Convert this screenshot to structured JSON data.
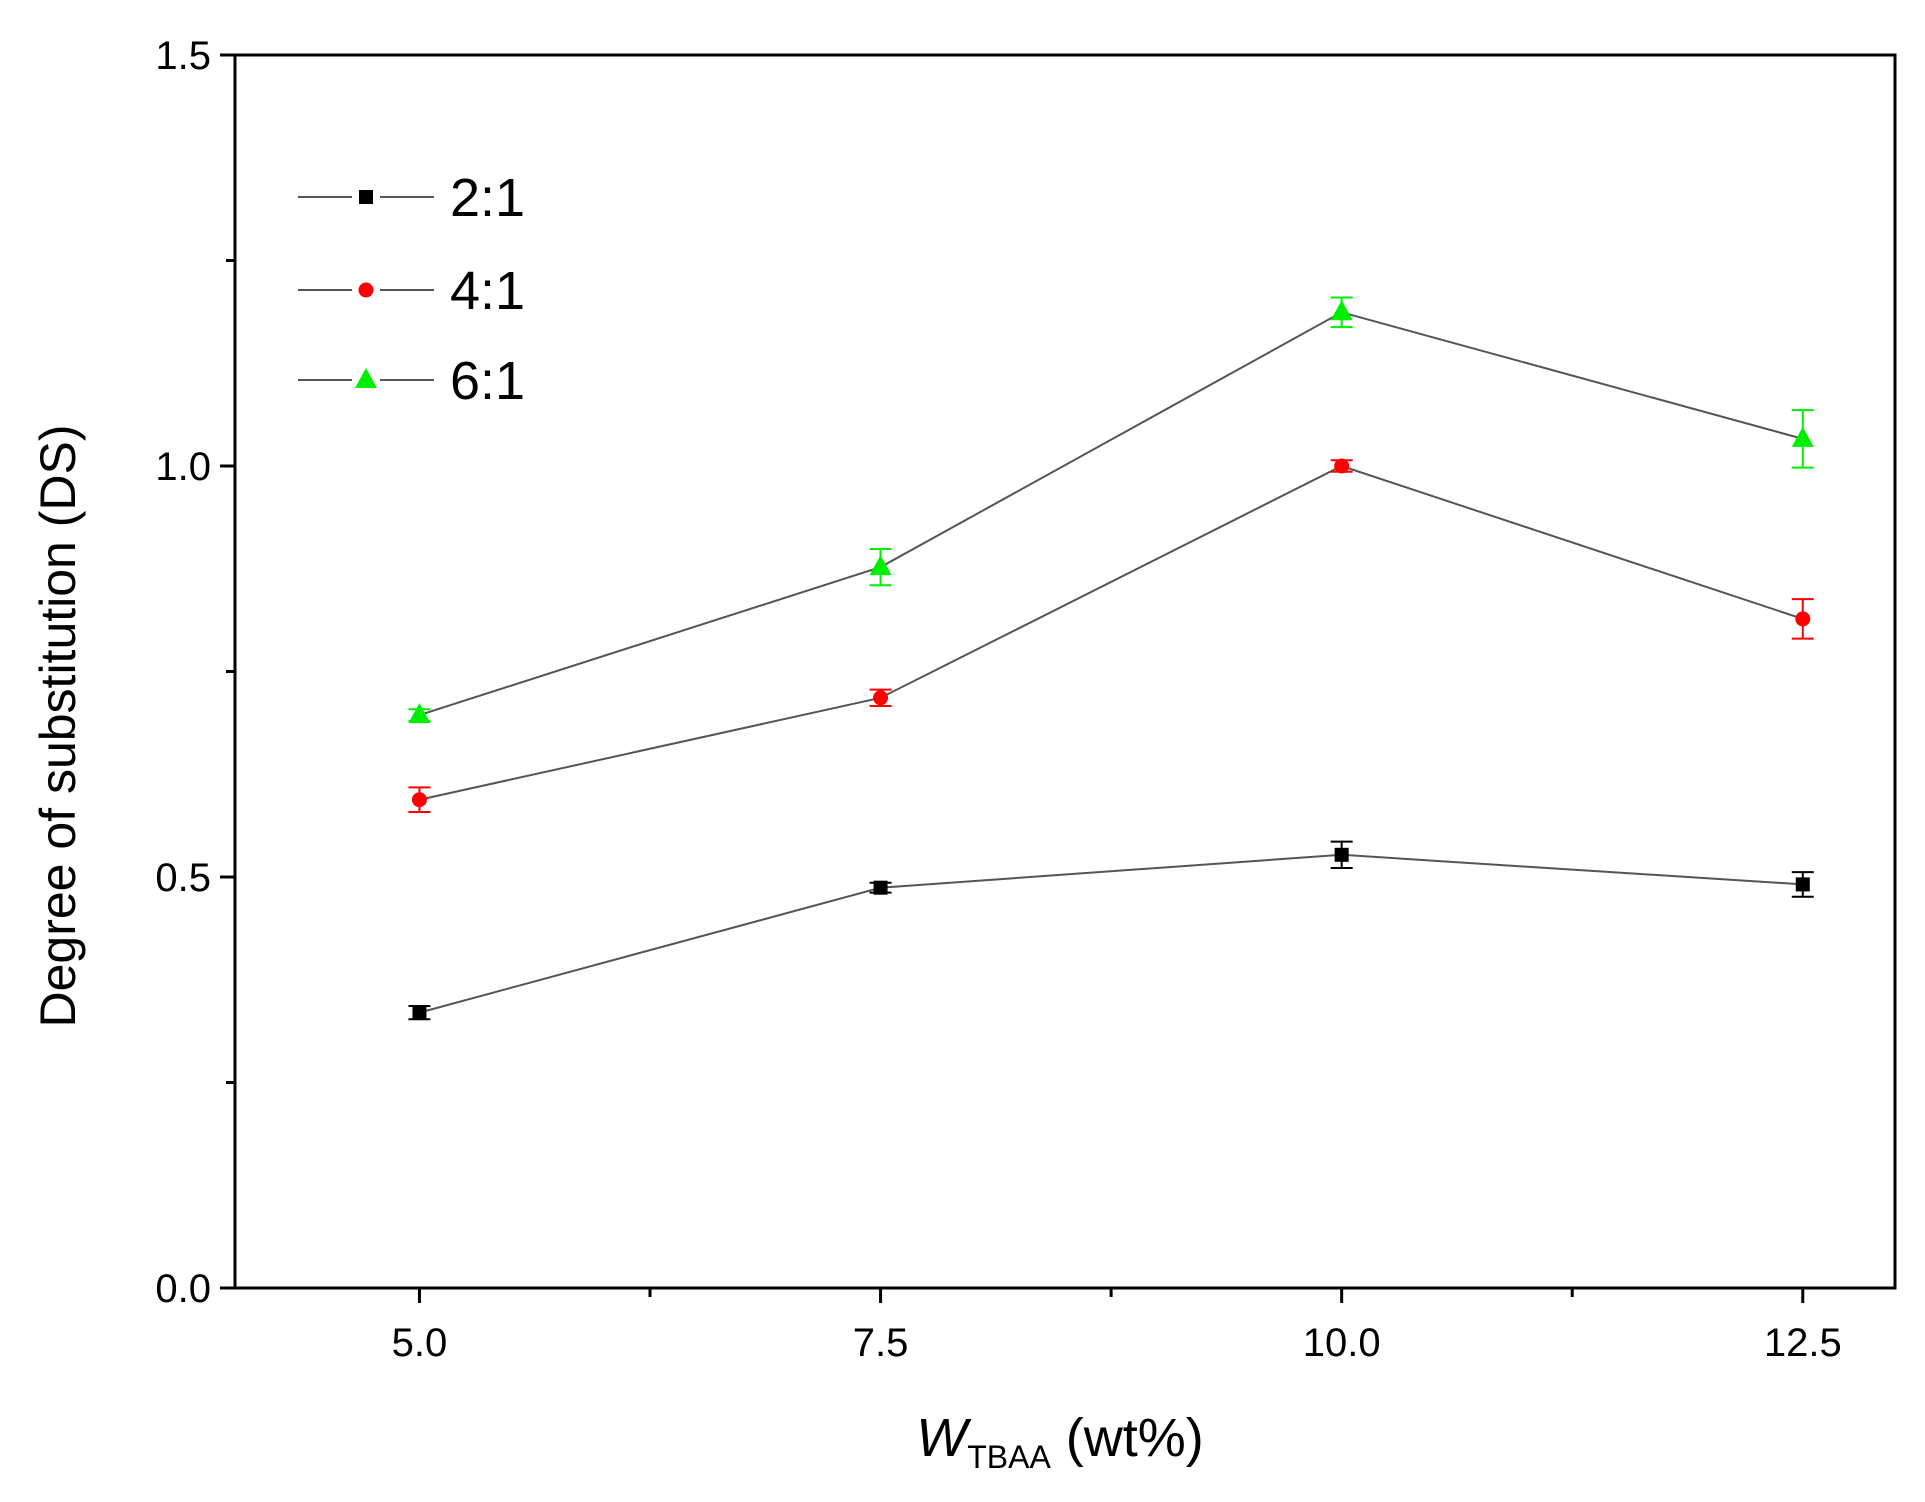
{
  "chart_data": {
    "type": "line",
    "title": "",
    "xlabel": {
      "italic": "W",
      "subscript": "TBAA",
      "unit": " (wt%)"
    },
    "ylabel": "Degree of substitution (DS)",
    "x": [
      5.0,
      7.5,
      10.0,
      12.5
    ],
    "xlim": [
      4.0,
      13.0
    ],
    "ylim": [
      0.0,
      1.5
    ],
    "x_ticks": [
      "5.0",
      "7.5",
      "10.0",
      "12.5"
    ],
    "y_ticks": [
      "0.0",
      "0.5",
      "1.0",
      "1.5"
    ],
    "legend_position": "top-left",
    "grid": false,
    "series": [
      {
        "name": "2:1",
        "marker": "square",
        "color": "#000000",
        "values": [
          0.335,
          0.487,
          0.527,
          0.491
        ],
        "errors": [
          0.008,
          0.006,
          0.016,
          0.015
        ]
      },
      {
        "name": "4:1",
        "marker": "circle",
        "color": "#ff0000",
        "values": [
          0.594,
          0.718,
          1.0,
          0.814
        ],
        "errors": [
          0.015,
          0.01,
          0.007,
          0.024
        ]
      },
      {
        "name": "6:1",
        "marker": "triangle",
        "color": "#00ee00",
        "values": [
          0.697,
          0.877,
          1.187,
          1.033
        ],
        "errors": [
          0.007,
          0.022,
          0.018,
          0.035
        ]
      }
    ]
  }
}
